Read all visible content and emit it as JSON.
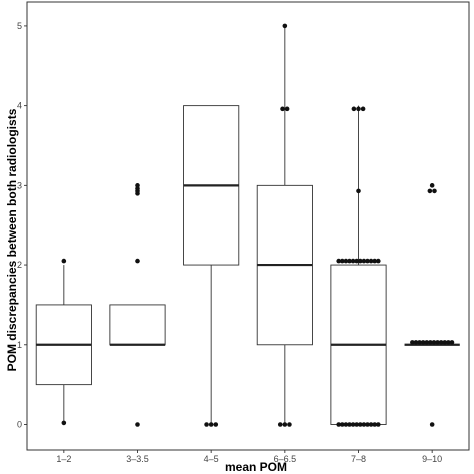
{
  "chart_data": {
    "type": "box",
    "xlabel": "mean POM",
    "ylabel": "POM discrepancies between both radiologists",
    "ylim": [
      -0.32,
      5.3
    ],
    "yticks": [
      0,
      1,
      2,
      3,
      4,
      5
    ],
    "grid": false,
    "categories": [
      "1–2",
      "3–3.5",
      "4–5",
      "6–6.5",
      "7–8",
      "9–10"
    ],
    "boxes": [
      {
        "category": "1–2",
        "whisker_low": 0,
        "q1": 0.5,
        "median": 1,
        "q3": 1.5,
        "whisker_high": 2,
        "outliers": [
          0.02,
          2.05
        ]
      },
      {
        "category": "3–3.5",
        "whisker_low": 1,
        "q1": 1,
        "median": 1,
        "q3": 1.5,
        "whisker_high": 1.5,
        "outliers": [
          0,
          2.05,
          2.9,
          2.93,
          2.96,
          3
        ]
      },
      {
        "category": "4–5",
        "whisker_low": 0,
        "q1": 2,
        "median": 3,
        "q3": 4,
        "whisker_high": 4,
        "outliers": [
          0,
          0,
          0
        ]
      },
      {
        "category": "6–6.5",
        "whisker_low": 0,
        "q1": 1,
        "median": 2,
        "q3": 3,
        "whisker_high": 5,
        "outliers": [
          0,
          0,
          0,
          3.96,
          3.96,
          5
        ]
      },
      {
        "category": "7–8",
        "whisker_low": 0,
        "q1": 0,
        "median": 1,
        "q3": 2,
        "whisker_high": 4,
        "outliers": [
          0,
          0,
          0,
          0,
          0,
          0,
          0,
          0,
          0,
          0,
          0,
          0,
          2.05,
          2.05,
          2.05,
          2.05,
          2.05,
          2.05,
          2.05,
          2.05,
          2.05,
          2.05,
          2.05,
          2.05,
          2.93,
          3.96,
          3.96,
          3.96
        ]
      },
      {
        "category": "9–10",
        "whisker_low": 1,
        "q1": 1,
        "median": 1,
        "q3": 1,
        "whisker_high": 1,
        "outliers": [
          0,
          1.03,
          1.03,
          1.03,
          1.03,
          1.03,
          1.03,
          1.03,
          1.03,
          1.03,
          1.03,
          1.03,
          1.03,
          2.93,
          2.93,
          3
        ]
      }
    ]
  }
}
